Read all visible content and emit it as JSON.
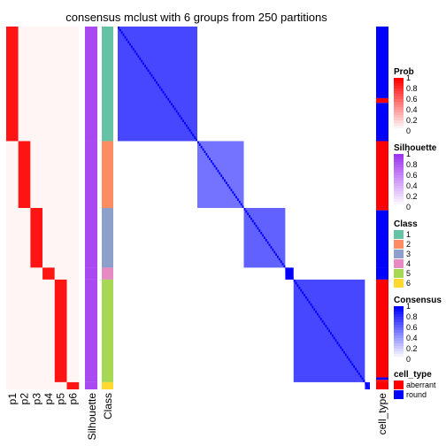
{
  "chart_data": {
    "type": "heatmap",
    "title": "consensus mclust with 6 groups from 250 partitions",
    "sample_groups": [
      {
        "class": 1,
        "n": 48,
        "cell_type_runs": [
          [
            30,
            "round"
          ],
          [
            2,
            "aberrant"
          ],
          [
            16,
            "round"
          ]
        ]
      },
      {
        "class": 2,
        "n": 28,
        "cell_type_runs": [
          [
            28,
            "aberrant"
          ]
        ]
      },
      {
        "class": 3,
        "n": 25,
        "cell_type_runs": [
          [
            1,
            "aberrant"
          ],
          [
            24,
            "round"
          ]
        ]
      },
      {
        "class": 4,
        "n": 5,
        "cell_type_runs": [
          [
            5,
            "round"
          ]
        ]
      },
      {
        "class": 5,
        "n": 43,
        "cell_type_runs": [
          [
            41,
            "aberrant"
          ],
          [
            1,
            "round"
          ],
          [
            1,
            "aberrant"
          ]
        ]
      },
      {
        "class": 6,
        "n": 3,
        "cell_type_runs": [
          [
            3,
            "aberrant"
          ]
        ]
      }
    ],
    "membership_columns": [
      "p1",
      "p2",
      "p3",
      "p4",
      "p5",
      "p6"
    ],
    "silhouette_label": "Silhouette",
    "class_label": "Class",
    "cell_type_label": "cell_type",
    "consensus_within_class": [
      0.72,
      0.55,
      0.62,
      1.0,
      0.72,
      0.9
    ],
    "legends": [
      {
        "title": "Prob",
        "type": "continuous",
        "labels": [
          "1",
          "0.8",
          "0.6",
          "0.4",
          "0.2",
          "0"
        ],
        "colors": [
          "#ff0000",
          "#ffffff"
        ]
      },
      {
        "title": "Silhouette",
        "type": "continuous",
        "labels": [
          "1",
          "0.8",
          "0.6",
          "0.4",
          "0.2",
          "0"
        ],
        "colors": [
          "#9e35f0",
          "#ffffff"
        ]
      },
      {
        "title": "Class",
        "type": "discrete",
        "labels": [
          "1",
          "2",
          "3",
          "4",
          "5",
          "6"
        ],
        "colors": [
          "#66c2a5",
          "#fc8d62",
          "#8da0cb",
          "#e78ac3",
          "#a6d854",
          "#ffd92f"
        ]
      },
      {
        "title": "Consensus",
        "type": "continuous",
        "labels": [
          "1",
          "0.8",
          "0.6",
          "0.4",
          "0.2",
          "0"
        ],
        "colors": [
          "#0000ff",
          "#ffffff"
        ]
      },
      {
        "title": "cell_type",
        "type": "discrete",
        "labels": [
          "aberrant",
          "round"
        ],
        "colors": [
          "#ff0000",
          "#0000ff"
        ]
      }
    ]
  }
}
